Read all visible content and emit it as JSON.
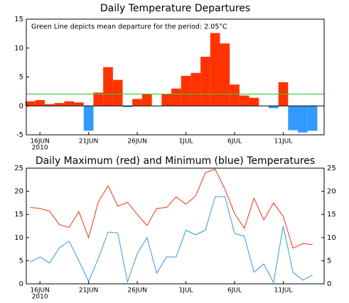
{
  "chart_data": [
    {
      "type": "bar",
      "title": "Daily Temperature Departures",
      "annotation": "Green Line depicts mean departure for the period: 2.05°C",
      "mean_line": 2.05,
      "mean_color": "#33cc33",
      "color_positive": "#ff3300",
      "color_negative": "#3399ff",
      "x": [
        15,
        16,
        17,
        18,
        19,
        20,
        21,
        22,
        23,
        24,
        25,
        26,
        27,
        28,
        29,
        30,
        31,
        32,
        33,
        34,
        35,
        36,
        37,
        38,
        39,
        40,
        41,
        42,
        43,
        44
      ],
      "values": [
        0.8,
        1.0,
        0.3,
        0.5,
        0.8,
        0.6,
        -4.3,
        2.3,
        6.7,
        4.5,
        -0.2,
        1.2,
        2.0,
        0,
        2.0,
        3.0,
        5.2,
        5.7,
        8.5,
        12.6,
        10.8,
        3.7,
        1.8,
        1.4,
        0,
        -0.4,
        4.1,
        -4.2,
        -4.6,
        -4.3
      ],
      "xlim": [
        14.6,
        45.2
      ],
      "xticks": [
        {
          "value": 16,
          "label": "16JUN"
        },
        {
          "value": 21,
          "label": "21JUN"
        },
        {
          "value": 26,
          "label": "26JUN"
        },
        {
          "value": 31,
          "label": "1JUL"
        },
        {
          "value": 36,
          "label": "6JUL"
        },
        {
          "value": 41,
          "label": "11JUL"
        }
      ],
      "year_label": "2010",
      "ylim": [
        -5,
        15
      ],
      "yticks": [
        -5,
        0,
        5,
        10,
        15
      ]
    },
    {
      "type": "line",
      "title": "Daily Maximum (red) and Minimum (blue) Temperatures",
      "x": [
        15,
        16,
        17,
        18,
        19,
        20,
        21,
        22,
        23,
        24,
        25,
        26,
        27,
        28,
        29,
        30,
        31,
        32,
        33,
        34,
        35,
        36,
        37,
        38,
        39,
        40,
        41,
        42,
        43,
        44
      ],
      "series": [
        {
          "name": "Maximum",
          "color": "#ee3311",
          "values": [
            16.5,
            16.3,
            15.7,
            12.8,
            12.2,
            15.6,
            10.0,
            17.7,
            21.2,
            16.8,
            17.6,
            15.0,
            12.6,
            16.3,
            16.5,
            18.8,
            17.2,
            19.0,
            24.0,
            24.8,
            20.5,
            15.2,
            12.0,
            18.5,
            13.8,
            17.5,
            14.6,
            7.7,
            8.7,
            8.5
          ]
        },
        {
          "name": "Minimum",
          "color": "#3399dd",
          "values": [
            4.7,
            5.8,
            4.5,
            7.8,
            9.2,
            5.0,
            0.5,
            5.5,
            11.2,
            11.0,
            0.4,
            6.5,
            10.0,
            2.3,
            5.8,
            5.8,
            11.6,
            10.6,
            11.6,
            18.8,
            18.9,
            10.9,
            10.3,
            2.5,
            4.3,
            0.3,
            12.5,
            2.5,
            0.8,
            1.9
          ]
        }
      ],
      "xlim": [
        14.6,
        45.2
      ],
      "xticks": [
        {
          "value": 16,
          "label": "16JUN"
        },
        {
          "value": 21,
          "label": "21JUN"
        },
        {
          "value": 26,
          "label": "26JUN"
        },
        {
          "value": 31,
          "label": "1JUL"
        },
        {
          "value": 36,
          "label": "6JUL"
        },
        {
          "value": 41,
          "label": "11JUL"
        }
      ],
      "year_label": "2010",
      "ylim": [
        0,
        25
      ],
      "yticks": [
        0,
        5,
        10,
        15,
        20,
        25
      ],
      "y2lim": [
        0,
        25
      ],
      "y2ticks": [
        0,
        5,
        10,
        15,
        20,
        25
      ]
    }
  ]
}
